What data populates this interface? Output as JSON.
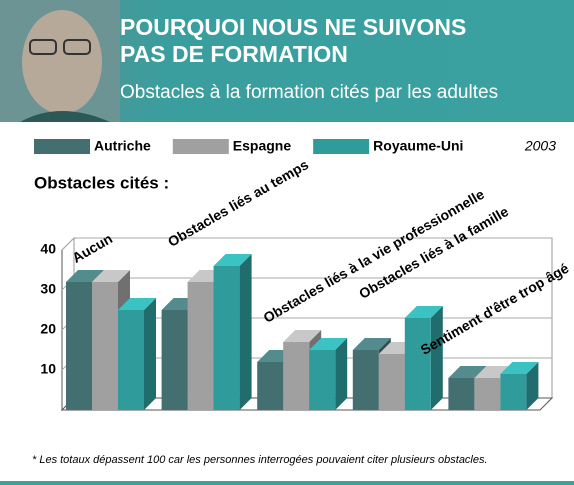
{
  "header": {
    "title": "POURQUOI NOUS NE SUIVONS PAS DE FORMATION",
    "subtitle": "Obstacles à la formation cités par les adultes"
  },
  "chart_data": {
    "type": "bar",
    "section_label": "Obstacles cités :",
    "year": "2003",
    "categories": [
      "Aucun",
      "Obstacles liés au temps",
      "Obstacles liés à la vie professionnelle",
      "Obstacles liés à la famille",
      "Sentiment d'être trop âgé"
    ],
    "series": [
      {
        "name": "Autriche",
        "color": "#436f71",
        "values": [
          32,
          25,
          12,
          15,
          8
        ]
      },
      {
        "name": "Espagne",
        "color": "#a0a0a0",
        "values": [
          32,
          32,
          17,
          14,
          8
        ]
      },
      {
        "name": "Royaume-Uni",
        "color": "#2f9b9b",
        "values": [
          25,
          36,
          15,
          23,
          9
        ]
      }
    ],
    "ylim": [
      0,
      40
    ],
    "yticks": [
      10,
      20,
      30,
      40
    ],
    "grid": true,
    "footnote": "* Les totaux dépassent 100 car les personnes interrogées pouvaient citer plusieurs obstacles."
  }
}
